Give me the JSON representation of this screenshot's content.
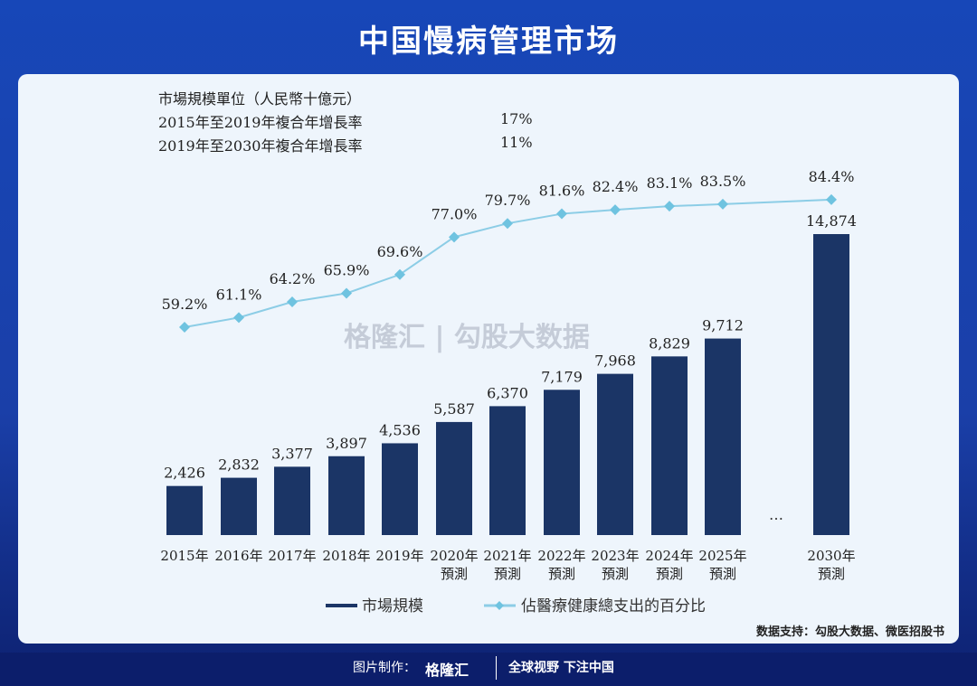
{
  "title": "中国慢病管理市场",
  "info": {
    "unit": "市場規模單位（人民幣十億元）",
    "cagr": [
      {
        "label": "2015年至2019年複合年增長率",
        "value": "17%"
      },
      {
        "label": "2019年至2030年複合年增長率",
        "value": "11%"
      }
    ]
  },
  "chart_data": {
    "type": "bar+line",
    "categories": [
      "2015年",
      "2016年",
      "2017年",
      "2018年",
      "2019年",
      "2020年\n預測",
      "2021年\n預測",
      "2022年\n預測",
      "2023年\n預測",
      "2024年\n預測",
      "2025年\n預測",
      "2030年\n預測"
    ],
    "gap_marker": "…",
    "series": [
      {
        "name": "市場規模",
        "type": "bar",
        "color": "#1b3566",
        "values": [
          2426,
          2832,
          3377,
          3897,
          4536,
          5587,
          6370,
          7179,
          7968,
          8829,
          9712,
          14874
        ],
        "labels": [
          "2,426",
          "2,832",
          "3,377",
          "3,897",
          "4,536",
          "5,587",
          "6,370",
          "7,179",
          "7,968",
          "8,829",
          "9,712",
          "14,874"
        ]
      },
      {
        "name": "佔醫療健康總支出的百分比",
        "type": "line",
        "color": "#8ccde6",
        "values": [
          59.2,
          61.1,
          64.2,
          65.9,
          69.6,
          77.0,
          79.7,
          81.6,
          82.4,
          83.1,
          83.5,
          84.4
        ],
        "labels": [
          "59.2%",
          "61.1%",
          "64.2%",
          "65.9%",
          "69.6%",
          "77.0%",
          "79.7%",
          "81.6%",
          "82.4%",
          "83.1%",
          "83.5%",
          "84.4%"
        ]
      }
    ],
    "legend": "bottom"
  },
  "watermark": "格隆汇 | 勾股大数据",
  "source": "数据支持：勾股大数据、微医招股书",
  "footer": {
    "made_by": "图片制作：",
    "brand": "格隆汇",
    "slogan": "全球视野 下注中国"
  }
}
